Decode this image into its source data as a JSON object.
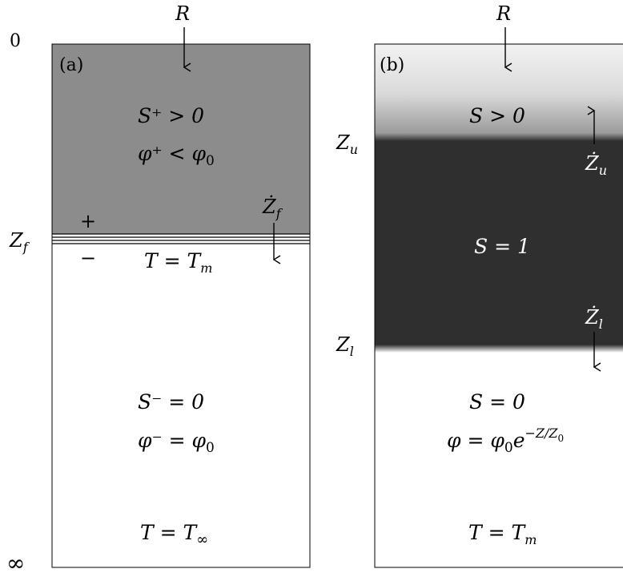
{
  "axis": {
    "top": "0",
    "bottom": "∞"
  },
  "panel_a": {
    "tag": "(a)",
    "flux": "R",
    "interface": "Z",
    "interface_sub": "f",
    "plus": "+",
    "minus": "−",
    "rate": "Ż",
    "rate_sub": "f",
    "upper_S": "S⁺ > 0",
    "upper_phi": "φ⁺ < φ",
    "upper_phi_sub": "0",
    "front_T": "T = T",
    "front_T_sub": "m",
    "lower_S": "S⁻ = 0",
    "lower_phi": "φ⁻ = φ",
    "lower_phi_sub": "0",
    "bottom_T": "T = T",
    "bottom_T_sub": "∞",
    "colors": {
      "saturated": "#8c8c8c",
      "unsaturated": "#ffffff"
    }
  },
  "panel_b": {
    "tag": "(b)",
    "flux": "R",
    "upper_interface": "Z",
    "upper_interface_sub": "u",
    "lower_interface": "Z",
    "lower_interface_sub": "l",
    "upper_rate": "Ż",
    "upper_rate_sub": "u",
    "lower_rate": "Ż",
    "lower_rate_sub": "l",
    "top_S": "S > 0",
    "middle_S": "S = 1",
    "bottom_S": "S = 0",
    "bottom_phi": "φ = φ",
    "bottom_phi_sub": "0",
    "bottom_phi_exp": "e",
    "bottom_phi_exp_sup": "−Z/Z",
    "bottom_phi_exp_sup_sub": "0",
    "bottom_T": "T = T",
    "bottom_T_sub": "m",
    "colors": {
      "saturated": "#2f2f2f",
      "unsaturated": "#ffffff"
    }
  }
}
